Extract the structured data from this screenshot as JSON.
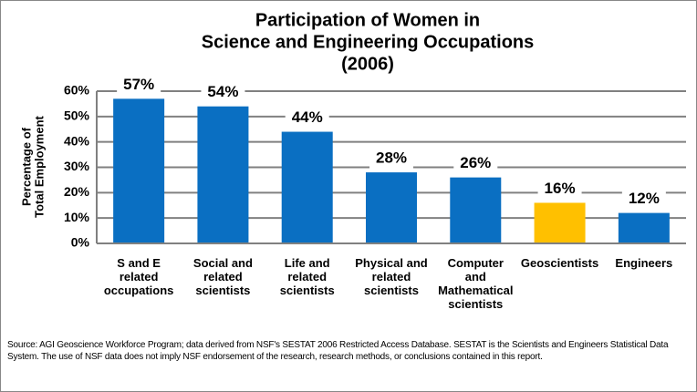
{
  "chart_data": {
    "type": "bar",
    "title": [
      "Participation of Women in",
      "Science and Engineering Occupations",
      "(2006)"
    ],
    "ylabel": [
      "Percentage of",
      "Total Employment"
    ],
    "categories": [
      "S and E related occupations",
      "Social and related scientists",
      "Life and related scientists",
      "Physical and related scientists",
      "Computer and Mathematical scientists",
      "Geoscientists",
      "Engineers"
    ],
    "values": [
      57,
      54,
      44,
      28,
      26,
      16,
      12
    ],
    "value_labels": [
      "57%",
      "54%",
      "44%",
      "28%",
      "26%",
      "16%",
      "12%"
    ],
    "colors": [
      "#0a6fc2",
      "#0a6fc2",
      "#0a6fc2",
      "#0a6fc2",
      "#0a6fc2",
      "#ffc000",
      "#0a6fc2"
    ],
    "ylim": [
      0,
      60
    ],
    "yticks": [
      {
        "value": 0,
        "label": "0%"
      },
      {
        "value": 10,
        "label": "10%"
      },
      {
        "value": 20,
        "label": "20%"
      },
      {
        "value": 30,
        "label": "30%"
      },
      {
        "value": 40,
        "label": "40%"
      },
      {
        "value": 50,
        "label": "50%"
      },
      {
        "value": 60,
        "label": "60%"
      }
    ],
    "grid": true,
    "source": "Source: AGI Geoscience Workforce Program; data derived from NSF's SESTAT 2006 Restricted Access Database. SESTAT is the Scientists and Engineers Statistical Data System. The use of NSF data does not imply NSF endorsement of the research, research methods, or conclusions contained in this report."
  }
}
